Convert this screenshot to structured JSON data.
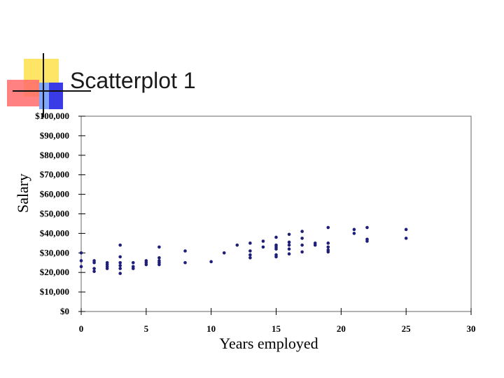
{
  "slide": {
    "title": "Scatterplot 1"
  },
  "colors": {
    "deco_yellow": "#FFE566",
    "deco_red": "#FF5A5A",
    "deco_blue": "#3A3AE6",
    "deco_lightblue": "#7FA6FF",
    "point": "#1F1F7A"
  },
  "chart_data": {
    "type": "scatter",
    "title": "",
    "xlabel": "Years employed",
    "ylabel": "Salary",
    "xlim": [
      0,
      30
    ],
    "ylim": [
      0,
      100000
    ],
    "x_ticks": [
      0,
      5,
      10,
      15,
      20,
      25,
      30
    ],
    "x_tick_labels": [
      "0",
      "5",
      "10",
      "15",
      "20",
      "25",
      "30"
    ],
    "y_ticks": [
      0,
      10000,
      20000,
      30000,
      40000,
      50000,
      60000,
      70000,
      80000,
      90000,
      100000
    ],
    "y_tick_labels": [
      "$0",
      "$10,000",
      "$20,000",
      "$30,000",
      "$40,000",
      "$50,000",
      "$60,000",
      "$70,000",
      "$80,000",
      "$90,000",
      "$100,000"
    ],
    "grid": false,
    "points": [
      {
        "x": 0,
        "y": 30000
      },
      {
        "x": 0,
        "y": 26000
      },
      {
        "x": 0,
        "y": 23000
      },
      {
        "x": 1,
        "y": 26000
      },
      {
        "x": 1,
        "y": 25000
      },
      {
        "x": 1,
        "y": 22000
      },
      {
        "x": 1,
        "y": 20500
      },
      {
        "x": 2,
        "y": 25000
      },
      {
        "x": 2,
        "y": 24000
      },
      {
        "x": 2,
        "y": 23000
      },
      {
        "x": 2,
        "y": 22000
      },
      {
        "x": 3,
        "y": 34000
      },
      {
        "x": 3,
        "y": 28000
      },
      {
        "x": 3,
        "y": 25000
      },
      {
        "x": 3,
        "y": 23500
      },
      {
        "x": 3,
        "y": 22000
      },
      {
        "x": 3,
        "y": 19500
      },
      {
        "x": 4,
        "y": 25000
      },
      {
        "x": 4,
        "y": 23000
      },
      {
        "x": 4,
        "y": 22000
      },
      {
        "x": 5,
        "y": 26000
      },
      {
        "x": 5,
        "y": 25000
      },
      {
        "x": 5,
        "y": 24000
      },
      {
        "x": 6,
        "y": 33000
      },
      {
        "x": 6,
        "y": 27500
      },
      {
        "x": 6,
        "y": 26000
      },
      {
        "x": 6,
        "y": 25000
      },
      {
        "x": 6,
        "y": 24000
      },
      {
        "x": 8,
        "y": 31000
      },
      {
        "x": 8,
        "y": 25000
      },
      {
        "x": 10,
        "y": 25500
      },
      {
        "x": 11,
        "y": 30000
      },
      {
        "x": 12,
        "y": 34000
      },
      {
        "x": 13,
        "y": 35000
      },
      {
        "x": 13,
        "y": 31000
      },
      {
        "x": 13,
        "y": 29000
      },
      {
        "x": 13,
        "y": 27500
      },
      {
        "x": 14,
        "y": 36000
      },
      {
        "x": 14,
        "y": 33000
      },
      {
        "x": 15,
        "y": 38000
      },
      {
        "x": 15,
        "y": 34000
      },
      {
        "x": 15,
        "y": 33000
      },
      {
        "x": 15,
        "y": 32000
      },
      {
        "x": 15,
        "y": 29000
      },
      {
        "x": 15,
        "y": 28000
      },
      {
        "x": 16,
        "y": 39500
      },
      {
        "x": 16,
        "y": 35500
      },
      {
        "x": 16,
        "y": 34000
      },
      {
        "x": 16,
        "y": 32000
      },
      {
        "x": 16,
        "y": 29500
      },
      {
        "x": 17,
        "y": 41000
      },
      {
        "x": 17,
        "y": 37500
      },
      {
        "x": 17,
        "y": 34000
      },
      {
        "x": 17,
        "y": 30500
      },
      {
        "x": 18,
        "y": 35000
      },
      {
        "x": 18,
        "y": 34000
      },
      {
        "x": 19,
        "y": 43000
      },
      {
        "x": 19,
        "y": 35000
      },
      {
        "x": 19,
        "y": 33000
      },
      {
        "x": 19,
        "y": 31500
      },
      {
        "x": 19,
        "y": 30500
      },
      {
        "x": 21,
        "y": 42000
      },
      {
        "x": 21,
        "y": 40000
      },
      {
        "x": 22,
        "y": 43000
      },
      {
        "x": 22,
        "y": 37000
      },
      {
        "x": 22,
        "y": 36000
      },
      {
        "x": 25,
        "y": 42000
      },
      {
        "x": 25,
        "y": 37500
      }
    ]
  }
}
